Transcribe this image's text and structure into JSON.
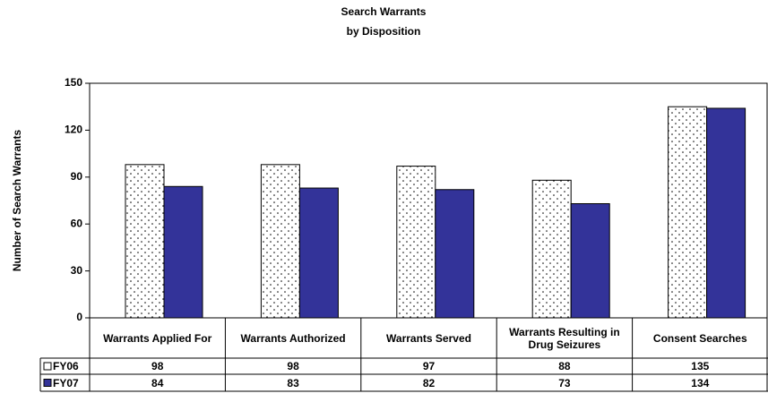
{
  "chart_data": {
    "type": "bar",
    "title": "Search Warrants",
    "subtitle": "by Disposition",
    "y_label": "Number of Search Warrants",
    "categories": [
      "Warrants Applied For",
      "Warrants Authorized",
      "Warrants Served",
      "Warrants Resulting in Drug Seizures",
      "Consent Searches"
    ],
    "series": [
      {
        "name": "FY06",
        "color": "#ffffff",
        "values": [
          98,
          98,
          97,
          88,
          135
        ]
      },
      {
        "name": "FY07",
        "color": "#333399",
        "values": [
          84,
          83,
          82,
          73,
          134
        ]
      }
    ],
    "ylim": [
      0,
      150
    ],
    "yticks": [
      0,
      30,
      60,
      90,
      120,
      150
    ],
    "grid": false
  }
}
